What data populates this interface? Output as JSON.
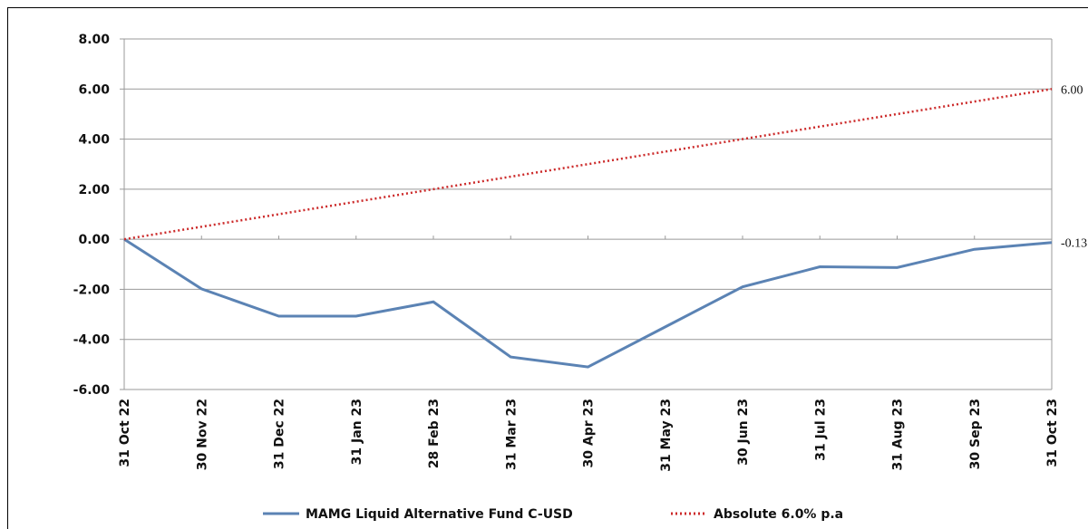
{
  "chart_data": {
    "type": "line",
    "categories": [
      "31 Oct 22",
      "30 Nov 22",
      "31 Dec 22",
      "31 Jan 23",
      "28 Feb 23",
      "31 Mar 23",
      "30 Apr 23",
      "31 May 23",
      "30 Jun 23",
      "31 Jul 23",
      "31 Aug 23",
      "30 Sep 23",
      "31 Oct 23"
    ],
    "series": [
      {
        "name": "MAMG Liquid Alternative Fund C-USD",
        "color": "#5b83b4",
        "dash": false,
        "values": [
          0,
          -1.98,
          -3.07,
          -3.07,
          -2.5,
          -4.7,
          -5.1,
          -3.5,
          -1.9,
          -1.1,
          -1.13,
          -0.4,
          -0.13
        ],
        "value_labels": [
          null,
          null,
          null,
          null,
          null,
          null,
          null,
          null,
          null,
          null,
          null,
          null,
          "-0.13"
        ]
      },
      {
        "name": "Absolute 6.0% p.a",
        "color": "#cc2a2a",
        "dash": true,
        "values": [
          0,
          0.5,
          1,
          1.5,
          2,
          2.5,
          3,
          3.5,
          4,
          4.5,
          5,
          5.5,
          6
        ],
        "value_labels": [
          null,
          null,
          null,
          null,
          null,
          null,
          null,
          null,
          null,
          null,
          null,
          null,
          "6.00"
        ]
      }
    ],
    "ylim": [
      -6,
      8
    ],
    "yticks": [
      {
        "value": -6,
        "label": "-6.00"
      },
      {
        "value": -4,
        "label": "-4.00"
      },
      {
        "value": -2,
        "label": "-2.00"
      },
      {
        "value": 0,
        "label": "0.00"
      },
      {
        "value": 2,
        "label": "2.00"
      },
      {
        "value": 4,
        "label": "4.00"
      },
      {
        "value": 6,
        "label": "6.00"
      },
      {
        "value": 8,
        "label": "8.00"
      }
    ],
    "grid": true,
    "legend": "bottom"
  }
}
